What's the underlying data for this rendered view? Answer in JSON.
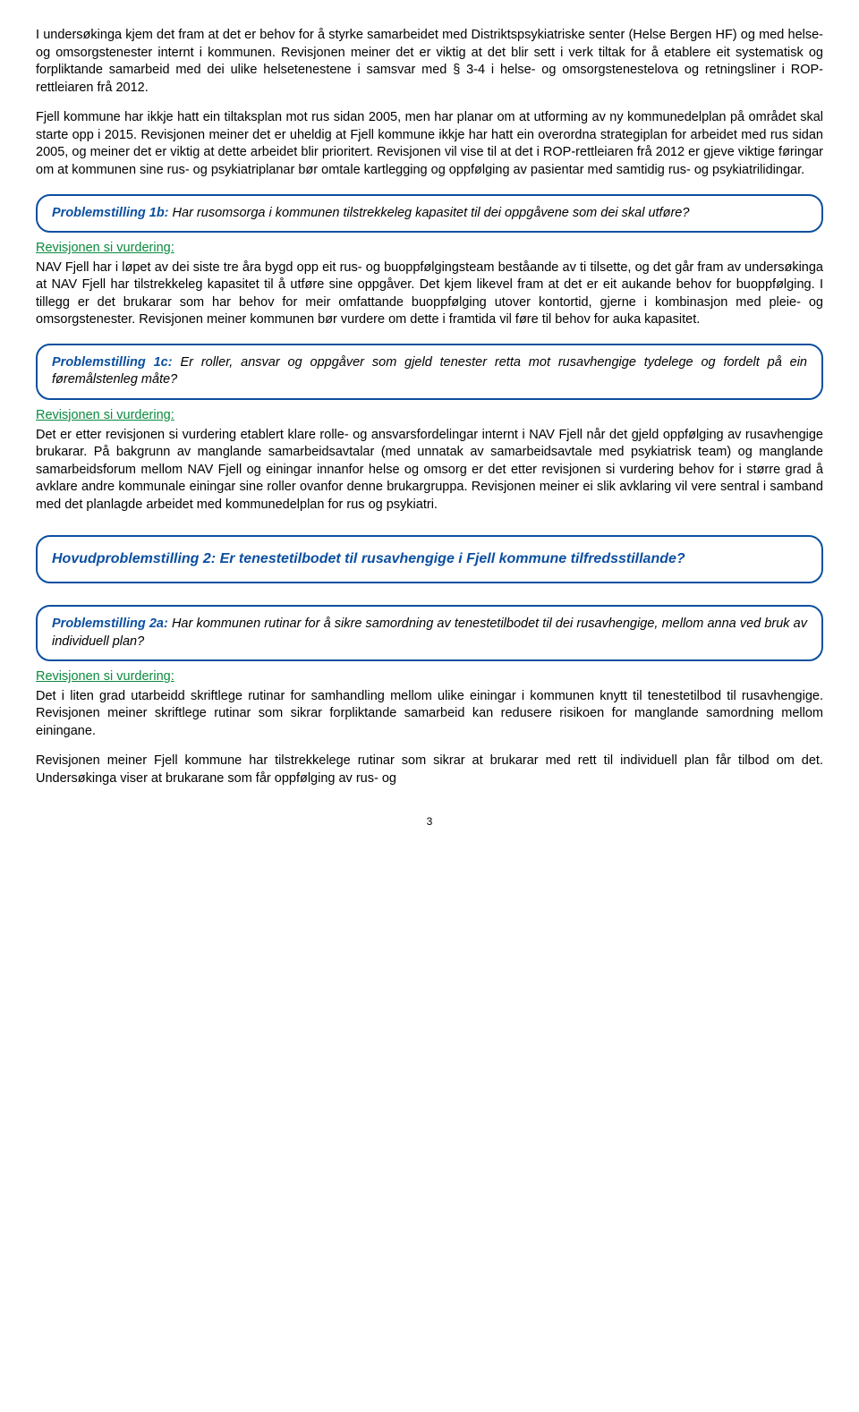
{
  "intro1": "I undersøkinga kjem det fram at det er behov for å styrke samarbeidet med Distriktspsykiatriske senter (Helse Bergen HF) og med helse- og omsorgstenester internt i kommunen. Revisjonen meiner det er viktig at det blir sett i verk tiltak for å etablere eit systematisk og forpliktande samarbeid med dei ulike helsetenestene i samsvar med § 3-4 i helse- og omsorgstenestelova og retningsliner i ROP-rettleiaren frå 2012.",
  "intro2": "Fjell kommune har ikkje hatt ein tiltaksplan mot rus sidan 2005, men har planar om at utforming av ny kommunedelplan på området skal starte opp i 2015. Revisjonen meiner det er uheldig at Fjell kommune ikkje har hatt ein overordna strategiplan for arbeidet med rus sidan 2005, og meiner det er viktig at dette arbeidet blir prioritert. Revisjonen vil vise til at det i ROP-rettleiaren frå 2012 er gjeve viktige føringar om at kommunen sine rus- og psykiatriplanar bør omtale kartlegging og oppfølging av pasientar med samtidig rus- og psykiatrilidingar.",
  "p1b": {
    "title": "Problemstilling 1b:",
    "rest": " Har rusomsorga i kommunen tilstrekkeleg kapasitet til dei oppgåvene som dei skal utføre?"
  },
  "vurd_label": "Revisjonen si vurdering:",
  "vurd1b": "NAV Fjell har i løpet av dei siste tre åra bygd opp eit rus- og buoppfølgingsteam beståande av ti tilsette, og det går fram av undersøkinga at NAV Fjell har tilstrekkeleg kapasitet til å utføre sine oppgåver. Det kjem likevel fram at det er eit aukande behov for buoppfølging. I tillegg er det brukarar som har behov for meir omfattande buoppfølging utover kontortid, gjerne i kombinasjon med pleie- og omsorgstenester. Revisjonen meiner kommunen bør vurdere om dette i framtida vil føre til behov for auka kapasitet.",
  "p1c": {
    "title": "Problemstilling 1c:",
    "rest": " Er roller, ansvar og oppgåver som gjeld tenester retta mot rusavhengige tydelege og fordelt på ein føremålstenleg måte?"
  },
  "vurd1c": "Det er etter revisjonen si vurdering etablert klare rolle- og ansvarsfordelingar internt i NAV Fjell når det gjeld oppfølging av rusavhengige brukarar. På bakgrunn av manglande samarbeidsavtalar (med unnatak av samarbeidsavtale med psykiatrisk team) og manglande samarbeidsforum mellom NAV Fjell og einingar innanfor helse og omsorg er det etter revisjonen si vurdering behov for i større grad å avklare andre kommunale einingar sine roller ovanfor denne brukargruppa. Revisjonen meiner ei slik avklaring vil vere sentral i samband med det planlagde arbeidet med kommunedelplan for rus og psykiatri.",
  "hp2": {
    "title": "Hovudproblemstilling 2:",
    "rest": " Er tenestetilbodet til rusavhengige i Fjell kommune tilfredsstillande?"
  },
  "p2a": {
    "title": "Problemstilling 2a:",
    "rest": " Har kommunen rutinar for å sikre samordning av tenestetilbodet til dei rusavhengige, mellom anna ved bruk av individuell plan?"
  },
  "vurd2a_p1": "Det i liten grad utarbeidd skriftlege rutinar for samhandling mellom ulike einingar i kommunen knytt til tenestetilbod til rusavhengige. Revisjonen meiner skriftlege rutinar som sikrar forpliktande samarbeid kan redusere risikoen for manglande samordning mellom einingane.",
  "vurd2a_p2": "Revisjonen meiner Fjell kommune har tilstrekkelege rutinar som sikrar at brukarar med rett til individuell plan får tilbod om det. Undersøkinga viser at brukarane som får oppfølging av rus- og",
  "pagenum": "3"
}
